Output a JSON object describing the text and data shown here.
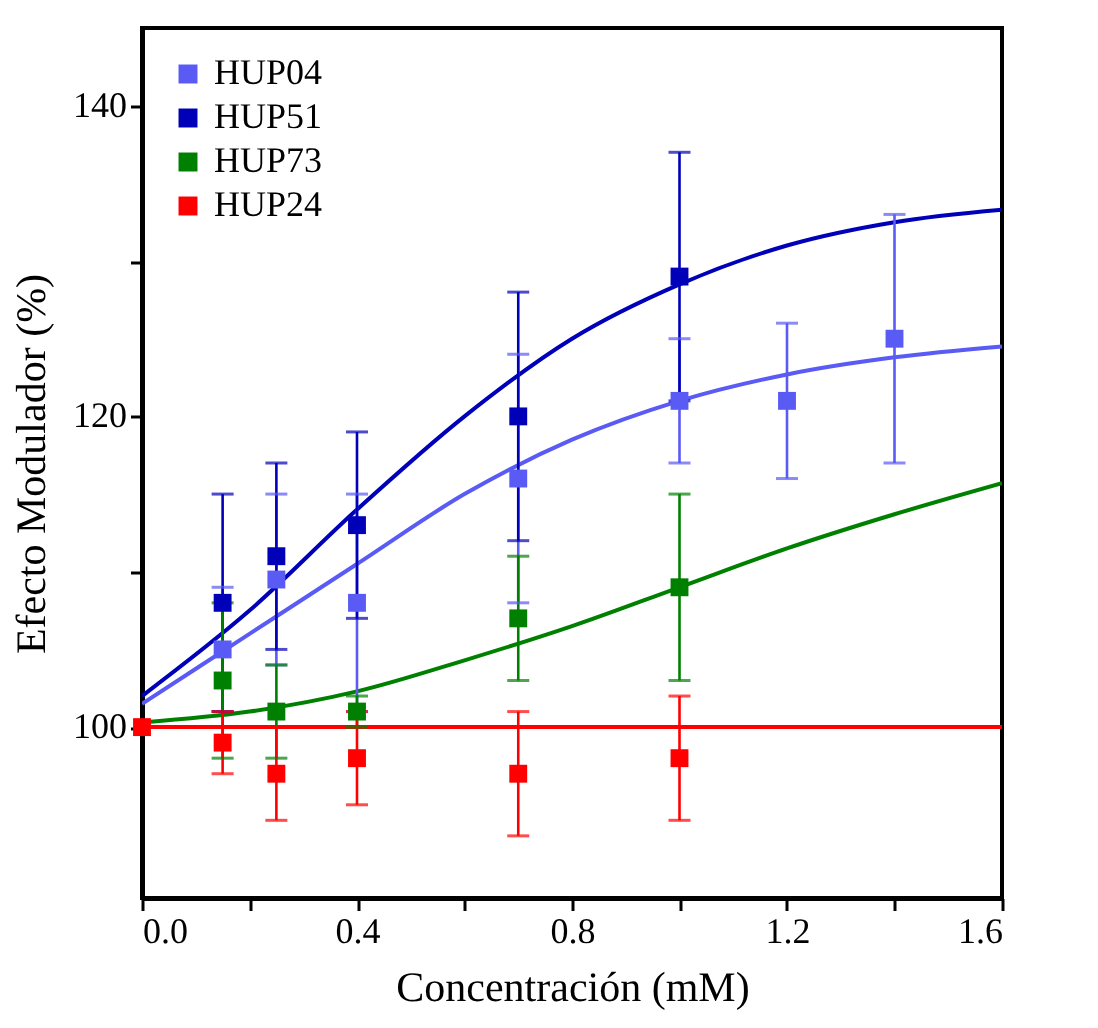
{
  "chart_data": {
    "type": "scatter",
    "xlabel": "Concentración (mM)",
    "ylabel": "Efecto Modulador (%)",
    "xlim": [
      0,
      1.6
    ],
    "ylim": [
      89,
      145
    ],
    "xticks": [
      {
        "value": 0,
        "label": "0.0"
      },
      {
        "value": 0.2,
        "label": null
      },
      {
        "value": 0.4,
        "label": "0.4"
      },
      {
        "value": 0.6,
        "label": null
      },
      {
        "value": 0.8,
        "label": "0.8"
      },
      {
        "value": 1.0,
        "label": null
      },
      {
        "value": 1.2,
        "label": "1.2"
      },
      {
        "value": 1.4,
        "label": null
      },
      {
        "value": 1.6,
        "label": "1.6"
      }
    ],
    "yticks": [
      100,
      {
        "value": 110,
        "label": null
      },
      120,
      {
        "value": 130,
        "label": null
      },
      140
    ],
    "grid": false,
    "legend": "top left",
    "series": [
      {
        "name": "HUP04",
        "color": "#5a5af5",
        "marker": "square",
        "x": [
          0.15,
          0.25,
          0.4,
          0.7,
          1.0,
          1.2,
          1.4
        ],
        "values": [
          105,
          109.5,
          108,
          116,
          121,
          121,
          125
        ],
        "errors": [
          4,
          5.5,
          7,
          8,
          4,
          5,
          8
        ]
      },
      {
        "name": "HUP51",
        "color": "#0000b8",
        "marker": "square",
        "x": [
          0.15,
          0.25,
          0.4,
          0.7,
          1.0
        ],
        "values": [
          108,
          111,
          113,
          120,
          129
        ],
        "errors": [
          7,
          6,
          6,
          8,
          8
        ]
      },
      {
        "name": "HUP73",
        "color": "#008000",
        "marker": "square",
        "x": [
          0.15,
          0.25,
          0.4,
          0.7,
          1.0
        ],
        "values": [
          103,
          101,
          101,
          107,
          109
        ],
        "errors": [
          5,
          3,
          1,
          4,
          6
        ]
      },
      {
        "name": "HUP24",
        "color": "#ff0000",
        "marker": "square",
        "x": [
          0,
          0.15,
          0.25,
          0.4,
          0.7,
          1.0
        ],
        "values": [
          100,
          99,
          97,
          98,
          97,
          98
        ],
        "errors": [
          null,
          2,
          3,
          3,
          4,
          4
        ]
      },
      {
        "type": "line",
        "color": "#5a5af5",
        "marker": "none",
        "x": [
          0,
          0.2,
          0.4,
          0.6,
          0.8,
          1.0,
          1.2,
          1.4,
          1.6
        ],
        "values": [
          101.5,
          106,
          110.5,
          115,
          118.5,
          121,
          122.7,
          123.8,
          124.5
        ]
      },
      {
        "type": "line",
        "color": "#0000b8",
        "marker": "none",
        "x": [
          0,
          0.2,
          0.4,
          0.6,
          0.8,
          1.0,
          1.2,
          1.4,
          1.6
        ],
        "values": [
          102,
          107.5,
          114,
          120,
          125,
          128.5,
          131,
          132.5,
          133.3
        ]
      },
      {
        "type": "line",
        "color": "#008000",
        "marker": "none",
        "x": [
          0,
          0.2,
          0.4,
          0.6,
          0.8,
          1.0,
          1.2,
          1.4,
          1.6
        ],
        "values": [
          100.3,
          101,
          102.3,
          104.3,
          106.5,
          109,
          111.5,
          113.7,
          115.7
        ]
      },
      {
        "type": "line",
        "color": "#ff0000",
        "marker": "none",
        "x": [
          0,
          1.6
        ],
        "values": [
          100,
          100
        ]
      }
    ]
  }
}
